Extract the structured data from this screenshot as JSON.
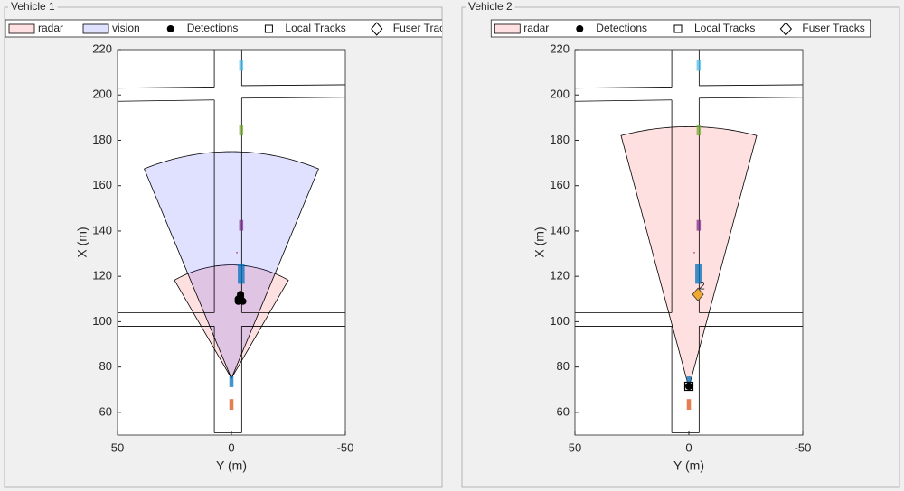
{
  "chart_data": [
    {
      "type": "birdseye",
      "title": "Vehicle 1",
      "xlabel": "Y (m)",
      "ylabel": "X (m)",
      "xlim": [
        50,
        -50
      ],
      "ylim": [
        50,
        220
      ],
      "xticks": [
        50,
        0,
        -50
      ],
      "yticks": [
        60,
        80,
        100,
        120,
        140,
        160,
        180,
        200,
        220
      ],
      "coverage": [
        {
          "name": "radar",
          "color": "#ff0000",
          "alpha": 0.12,
          "apex_x": 0,
          "apex_y": 75,
          "range": 50,
          "fov": 60
        },
        {
          "name": "vision",
          "color": "#0000ff",
          "alpha": 0.12,
          "apex_x": 0,
          "apex_y": 75,
          "range": 100,
          "fov": 45
        }
      ],
      "detections": {
        "name": "Detections",
        "color": "#000000",
        "x": [
          -3,
          -4,
          -5,
          -4,
          -3
        ],
        "y": [
          110,
          111,
          109,
          112,
          109
        ]
      },
      "local_tracks": {
        "name": "Local Tracks",
        "color": "#000000",
        "x": [],
        "y": []
      },
      "fuser_tracks": {
        "name": "Fuser Tracks",
        "color": "#f0a830",
        "x": [],
        "y": [],
        "labels": []
      },
      "actors": {
        "x": [
          -4.3,
          -4.3,
          -4.3,
          -4.3,
          -2.4,
          0,
          0
        ],
        "y": [
          213,
          184.5,
          142.5,
          121,
          130.5,
          73.5,
          63.5
        ],
        "length": [
          4.7,
          4.7,
          4.7,
          8.5,
          0.6,
          4.7,
          4.7
        ],
        "width": [
          1.8,
          1.8,
          1.8,
          3,
          0.6,
          1.8,
          1.8
        ],
        "colors": [
          "#4dbeee",
          "#77ac30",
          "#7e2f8e",
          "#0072bd",
          "#a2142f",
          "#0072bd",
          "#d95319"
        ]
      },
      "roads": [
        {
          "x": [
            7.5,
            7.5
          ],
          "y": [
            220,
            203.5
          ]
        },
        {
          "x": [
            7.5,
            7.5
          ],
          "y": [
            197.8,
            104
          ]
        },
        {
          "x": [
            7.5,
            7.5
          ],
          "y": [
            98,
            51
          ]
        },
        {
          "x": [
            -4.5,
            -4.5
          ],
          "y": [
            220,
            204.1
          ]
        },
        {
          "x": [
            -4.5,
            -4.5
          ],
          "y": [
            198.6,
            104
          ]
        },
        {
          "x": [
            -4.5,
            -4.5
          ],
          "y": [
            98,
            51
          ]
        },
        {
          "x": [
            7.5,
            -4.5
          ],
          "y": [
            51,
            51
          ]
        },
        {
          "x": [
            50,
            7.5
          ],
          "y": [
            203,
            203.5
          ]
        },
        {
          "x": [
            50,
            7.5
          ],
          "y": [
            197.2,
            197.8
          ]
        },
        {
          "x": [
            -4.5,
            -50
          ],
          "y": [
            204.1,
            204.5
          ]
        },
        {
          "x": [
            -4.5,
            -50
          ],
          "y": [
            198.6,
            199
          ]
        },
        {
          "x": [
            50,
            7.5
          ],
          "y": [
            104,
            104
          ]
        },
        {
          "x": [
            50,
            7.5
          ],
          "y": [
            98,
            98
          ]
        },
        {
          "x": [
            -4.5,
            -50
          ],
          "y": [
            104,
            104
          ]
        },
        {
          "x": [
            -4.5,
            -50
          ],
          "y": [
            98,
            98
          ]
        }
      ]
    },
    {
      "type": "birdseye",
      "title": "Vehicle 2",
      "xlabel": "Y (m)",
      "ylabel": "X (m)",
      "xlim": [
        50,
        -50
      ],
      "ylim": [
        50,
        220
      ],
      "xticks": [
        50,
        0,
        -50
      ],
      "yticks": [
        60,
        80,
        100,
        120,
        140,
        160,
        180,
        200,
        220
      ],
      "coverage": [
        {
          "name": "radar",
          "color": "#ff0000",
          "alpha": 0.12,
          "apex_x": 0,
          "apex_y": 71,
          "range": 115,
          "fov": 30
        }
      ],
      "detections": {
        "name": "Detections",
        "color": "#000000",
        "x": [
          0
        ],
        "y": [
          71.5
        ]
      },
      "local_tracks": {
        "name": "Local Tracks",
        "color": "#000000",
        "x": [
          0
        ],
        "y": [
          71.5
        ]
      },
      "fuser_tracks": {
        "name": "Fuser Tracks",
        "color": "#f0a830",
        "x": [
          -4
        ],
        "y": [
          112
        ],
        "labels": [
          "2"
        ]
      },
      "actors": {
        "x": [
          -4.3,
          -4.3,
          -4.3,
          -4.3,
          -2.4,
          0,
          0
        ],
        "y": [
          213,
          184.5,
          142.5,
          121,
          130.5,
          73.5,
          63.5
        ],
        "length": [
          4.7,
          4.7,
          4.7,
          8.5,
          0.6,
          4.7,
          4.7
        ],
        "width": [
          1.8,
          1.8,
          1.8,
          3,
          0.6,
          1.8,
          1.8
        ],
        "colors": [
          "#4dbeee",
          "#77ac30",
          "#7e2f8e",
          "#0072bd",
          "#a2142f",
          "#0072bd",
          "#d95319"
        ]
      },
      "roads": [
        {
          "x": [
            7.5,
            7.5
          ],
          "y": [
            220,
            203.5
          ]
        },
        {
          "x": [
            7.5,
            7.5
          ],
          "y": [
            197.8,
            104
          ]
        },
        {
          "x": [
            7.5,
            7.5
          ],
          "y": [
            98,
            51
          ]
        },
        {
          "x": [
            -4.5,
            -4.5
          ],
          "y": [
            220,
            204.1
          ]
        },
        {
          "x": [
            -4.5,
            -4.5
          ],
          "y": [
            198.6,
            104
          ]
        },
        {
          "x": [
            -4.5,
            -4.5
          ],
          "y": [
            98,
            51
          ]
        },
        {
          "x": [
            7.5,
            -4.5
          ],
          "y": [
            51,
            51
          ]
        },
        {
          "x": [
            50,
            7.5
          ],
          "y": [
            203,
            203.5
          ]
        },
        {
          "x": [
            50,
            7.5
          ],
          "y": [
            197.2,
            197.8
          ]
        },
        {
          "x": [
            -4.5,
            -50
          ],
          "y": [
            204.1,
            204.5
          ]
        },
        {
          "x": [
            -4.5,
            -50
          ],
          "y": [
            198.6,
            199
          ]
        },
        {
          "x": [
            50,
            7.5
          ],
          "y": [
            104,
            104
          ]
        },
        {
          "x": [
            50,
            7.5
          ],
          "y": [
            98,
            98
          ]
        },
        {
          "x": [
            -4.5,
            -50
          ],
          "y": [
            104,
            104
          ]
        },
        {
          "x": [
            -4.5,
            -50
          ],
          "y": [
            98,
            98
          ]
        }
      ]
    }
  ]
}
